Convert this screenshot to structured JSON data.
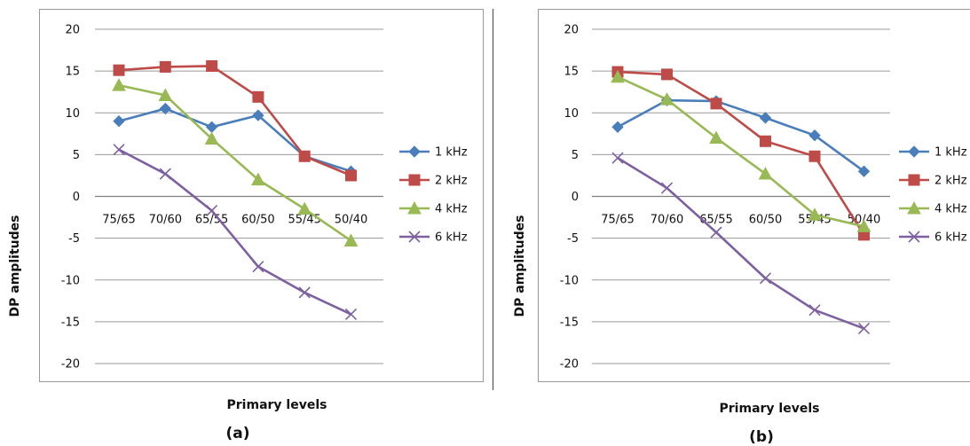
{
  "chart_data": [
    {
      "type": "line",
      "panel_label": "(a)",
      "xlabel": "Primary levels",
      "ylabel": "DP amplitudes",
      "categories": [
        "75/65",
        "70/60",
        "65/55",
        "60/50",
        "55/45",
        "50/40"
      ],
      "ylim": [
        -20,
        20
      ],
      "yticks": [
        20,
        15,
        10,
        5,
        0,
        -5,
        -10,
        -15,
        -20
      ],
      "grid": true,
      "legend_position": "right",
      "series": [
        {
          "name": "1 kHz",
          "color": "#4a7ebb",
          "marker": "diamond",
          "values": [
            9.0,
            10.5,
            8.3,
            9.7,
            4.8,
            3.0
          ]
        },
        {
          "name": "2 kHz",
          "color": "#be4b48",
          "marker": "square",
          "values": [
            15.1,
            15.5,
            15.6,
            11.9,
            4.8,
            2.5
          ]
        },
        {
          "name": "4 kHz",
          "color": "#98b954",
          "marker": "triangle",
          "values": [
            13.3,
            12.1,
            6.9,
            2.0,
            -1.5,
            -5.3
          ]
        },
        {
          "name": "6 kHz",
          "color": "#7d60a0",
          "marker": "x",
          "values": [
            5.6,
            2.7,
            -1.7,
            -8.4,
            -11.5,
            -14.1
          ]
        }
      ]
    },
    {
      "type": "line",
      "panel_label": "(b)",
      "xlabel": "Primary levels",
      "ylabel": "DP amplitudes",
      "categories": [
        "75/65",
        "70/60",
        "65/55",
        "60/50",
        "55/45",
        "50/40"
      ],
      "ylim": [
        -20,
        20
      ],
      "yticks": [
        20,
        15,
        10,
        5,
        0,
        -5,
        -10,
        -15,
        -20
      ],
      "grid": true,
      "legend_position": "right",
      "series": [
        {
          "name": "1 kHz",
          "color": "#4a7ebb",
          "marker": "diamond",
          "values": [
            8.3,
            11.5,
            11.4,
            9.4,
            7.3,
            3.0
          ]
        },
        {
          "name": "2 kHz",
          "color": "#be4b48",
          "marker": "square",
          "values": [
            14.9,
            14.6,
            11.1,
            6.6,
            4.8,
            -4.6
          ]
        },
        {
          "name": "4 kHz",
          "color": "#98b954",
          "marker": "triangle",
          "values": [
            14.3,
            11.6,
            7.0,
            2.7,
            -2.2,
            -3.6
          ]
        },
        {
          "name": "6 kHz",
          "color": "#7d60a0",
          "marker": "x",
          "values": [
            4.6,
            1.0,
            -4.3,
            -9.8,
            -13.6,
            -15.8
          ]
        }
      ]
    }
  ]
}
